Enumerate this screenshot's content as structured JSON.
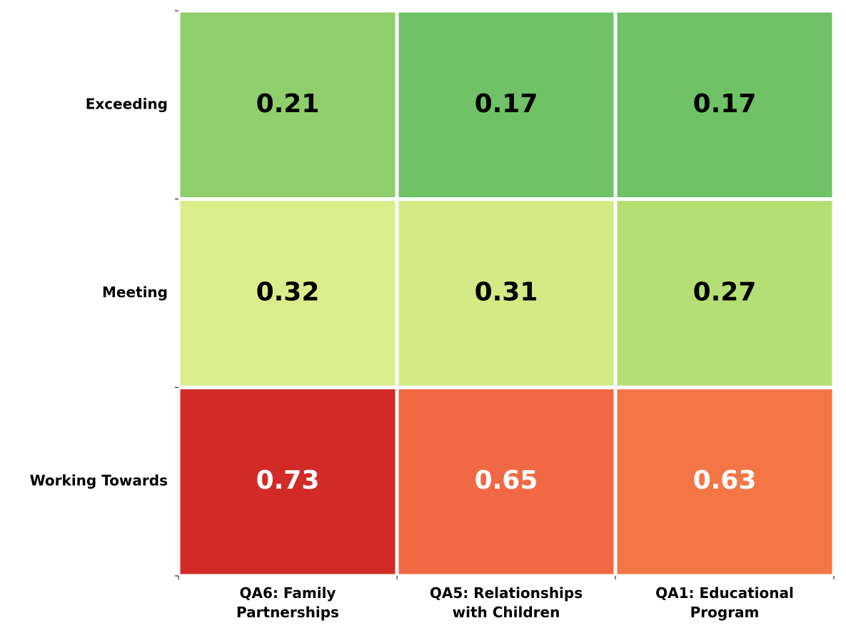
{
  "chart_data": {
    "type": "heatmap",
    "rows": [
      "Exceeding",
      "Meeting",
      "Working Towards"
    ],
    "columns": [
      "QA6: Family Partnerships",
      "QA5: Relationships with Children",
      "QA1: Educational Program"
    ],
    "values": [
      [
        0.21,
        0.17,
        0.17
      ],
      [
        0.32,
        0.31,
        0.27
      ],
      [
        0.73,
        0.65,
        0.63
      ]
    ],
    "colors": [
      [
        "#8fce6a",
        "#6fc266",
        "#70c266"
      ],
      [
        "#dbed8b",
        "#d3ea85",
        "#b5df74"
      ],
      [
        "#d22b27",
        "#f16944",
        "#f47646"
      ]
    ]
  }
}
